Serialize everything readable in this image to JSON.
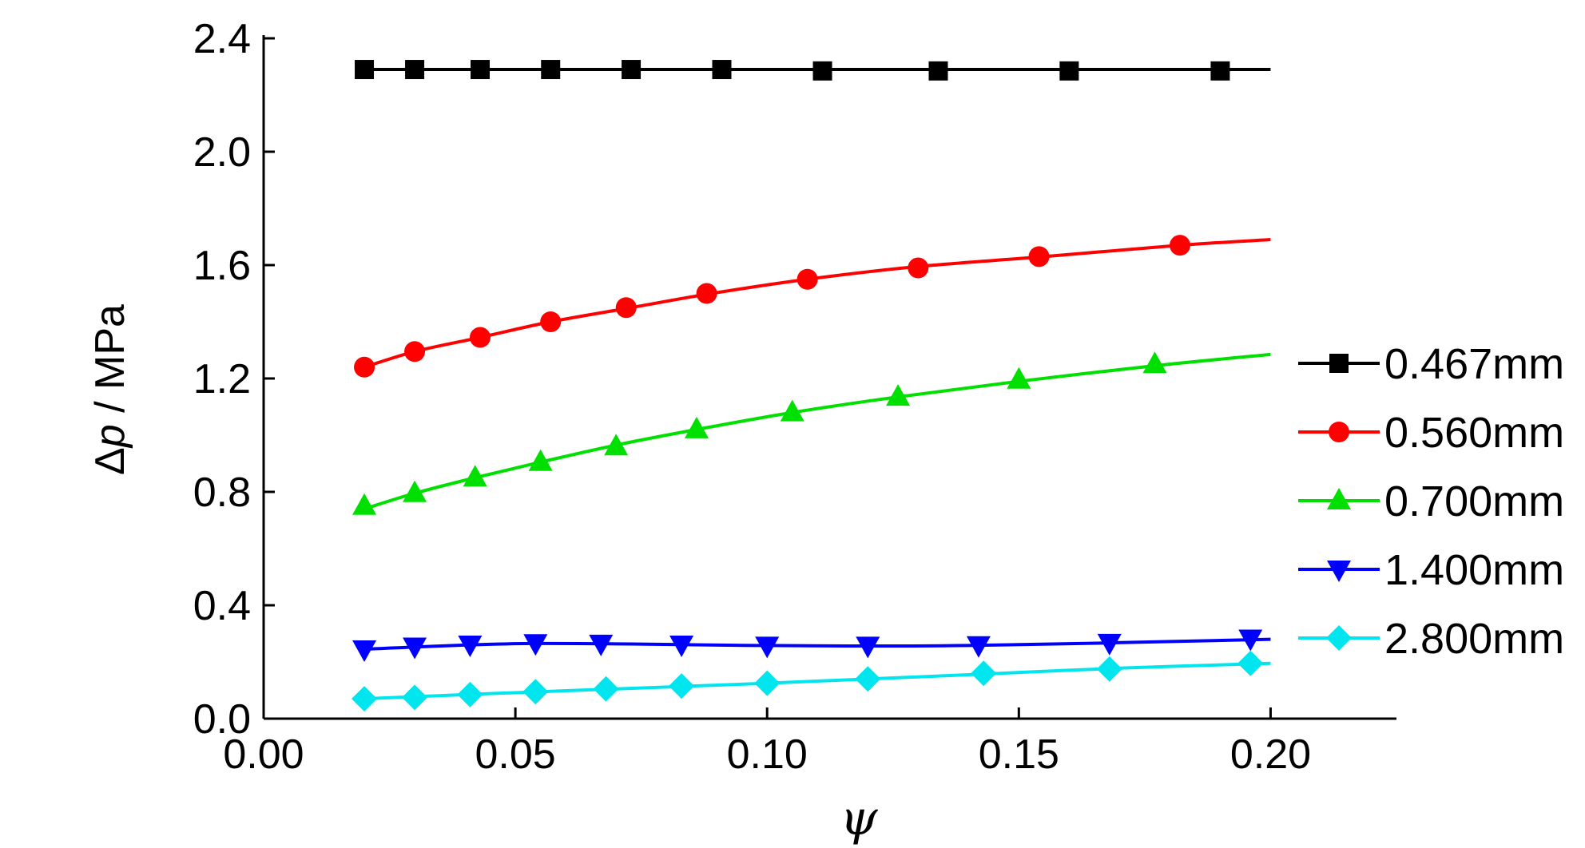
{
  "chart_data": {
    "type": "line",
    "xlabel": "ψ",
    "ylabel_prefix": "Δ",
    "ylabel_var": "p",
    "ylabel_unit": " / MPa",
    "xlim": [
      0.0,
      0.225
    ],
    "ylim": [
      0.0,
      2.4
    ],
    "x_ticks": [
      "0.00",
      "0.05",
      "0.10",
      "0.15",
      "0.20"
    ],
    "y_ticks": [
      "0.0",
      "0.4",
      "0.8",
      "1.2",
      "1.6",
      "2.0",
      "2.4"
    ],
    "grid": false,
    "legend_position": "right",
    "series": [
      {
        "name": "0.467mm",
        "color": "#000000",
        "marker": "square",
        "line": [
          [
            0.02,
            2.29
          ],
          [
            0.1,
            2.29
          ],
          [
            0.2,
            2.29
          ]
        ],
        "points": [
          [
            0.02,
            2.29
          ],
          [
            0.03,
            2.29
          ],
          [
            0.043,
            2.29
          ],
          [
            0.057,
            2.29
          ],
          [
            0.073,
            2.29
          ],
          [
            0.091,
            2.29
          ],
          [
            0.111,
            2.285
          ],
          [
            0.134,
            2.285
          ],
          [
            0.16,
            2.285
          ],
          [
            0.19,
            2.285
          ]
        ]
      },
      {
        "name": "0.560mm",
        "color": "#ff0000",
        "marker": "circle",
        "line": [
          [
            0.02,
            1.24
          ],
          [
            0.03,
            1.295
          ],
          [
            0.043,
            1.345
          ],
          [
            0.057,
            1.4
          ],
          [
            0.073,
            1.45
          ],
          [
            0.089,
            1.5
          ],
          [
            0.108,
            1.55
          ],
          [
            0.13,
            1.595
          ],
          [
            0.155,
            1.63
          ],
          [
            0.182,
            1.67
          ],
          [
            0.2,
            1.69
          ]
        ],
        "points": [
          [
            0.02,
            1.24
          ],
          [
            0.03,
            1.295
          ],
          [
            0.043,
            1.345
          ],
          [
            0.057,
            1.4
          ],
          [
            0.072,
            1.45
          ],
          [
            0.088,
            1.5
          ],
          [
            0.108,
            1.55
          ],
          [
            0.13,
            1.59
          ],
          [
            0.154,
            1.63
          ],
          [
            0.182,
            1.67
          ]
        ]
      },
      {
        "name": "0.700mm",
        "color": "#00e000",
        "marker": "triangle-up",
        "line": [
          [
            0.02,
            0.74
          ],
          [
            0.03,
            0.795
          ],
          [
            0.042,
            0.85
          ],
          [
            0.055,
            0.905
          ],
          [
            0.07,
            0.965
          ],
          [
            0.086,
            1.02
          ],
          [
            0.105,
            1.08
          ],
          [
            0.126,
            1.135
          ],
          [
            0.15,
            1.19
          ],
          [
            0.177,
            1.245
          ],
          [
            0.2,
            1.285
          ]
        ],
        "points": [
          [
            0.02,
            0.75
          ],
          [
            0.03,
            0.795
          ],
          [
            0.042,
            0.85
          ],
          [
            0.055,
            0.905
          ],
          [
            0.07,
            0.96
          ],
          [
            0.086,
            1.02
          ],
          [
            0.105,
            1.08
          ],
          [
            0.126,
            1.135
          ],
          [
            0.15,
            1.195
          ],
          [
            0.177,
            1.25
          ]
        ]
      },
      {
        "name": "1.400mm",
        "color": "#0000ff",
        "marker": "triangle-down",
        "line": [
          [
            0.02,
            0.245
          ],
          [
            0.053,
            0.265
          ],
          [
            0.1,
            0.258
          ],
          [
            0.14,
            0.258
          ],
          [
            0.2,
            0.28
          ]
        ],
        "points": [
          [
            0.02,
            0.245
          ],
          [
            0.03,
            0.255
          ],
          [
            0.041,
            0.262
          ],
          [
            0.054,
            0.267
          ],
          [
            0.067,
            0.265
          ],
          [
            0.083,
            0.262
          ],
          [
            0.1,
            0.258
          ],
          [
            0.12,
            0.258
          ],
          [
            0.142,
            0.26
          ],
          [
            0.168,
            0.268
          ],
          [
            0.196,
            0.283
          ]
        ]
      },
      {
        "name": "2.800mm",
        "color": "#00e5ee",
        "marker": "diamond",
        "line": [
          [
            0.02,
            0.07
          ],
          [
            0.04,
            0.085
          ],
          [
            0.07,
            0.105
          ],
          [
            0.1,
            0.125
          ],
          [
            0.14,
            0.155
          ],
          [
            0.17,
            0.178
          ],
          [
            0.2,
            0.195
          ]
        ],
        "points": [
          [
            0.02,
            0.07
          ],
          [
            0.03,
            0.075
          ],
          [
            0.041,
            0.085
          ],
          [
            0.054,
            0.095
          ],
          [
            0.068,
            0.105
          ],
          [
            0.083,
            0.115
          ],
          [
            0.1,
            0.125
          ],
          [
            0.12,
            0.14
          ],
          [
            0.143,
            0.16
          ],
          [
            0.168,
            0.175
          ],
          [
            0.196,
            0.195
          ]
        ]
      }
    ]
  }
}
